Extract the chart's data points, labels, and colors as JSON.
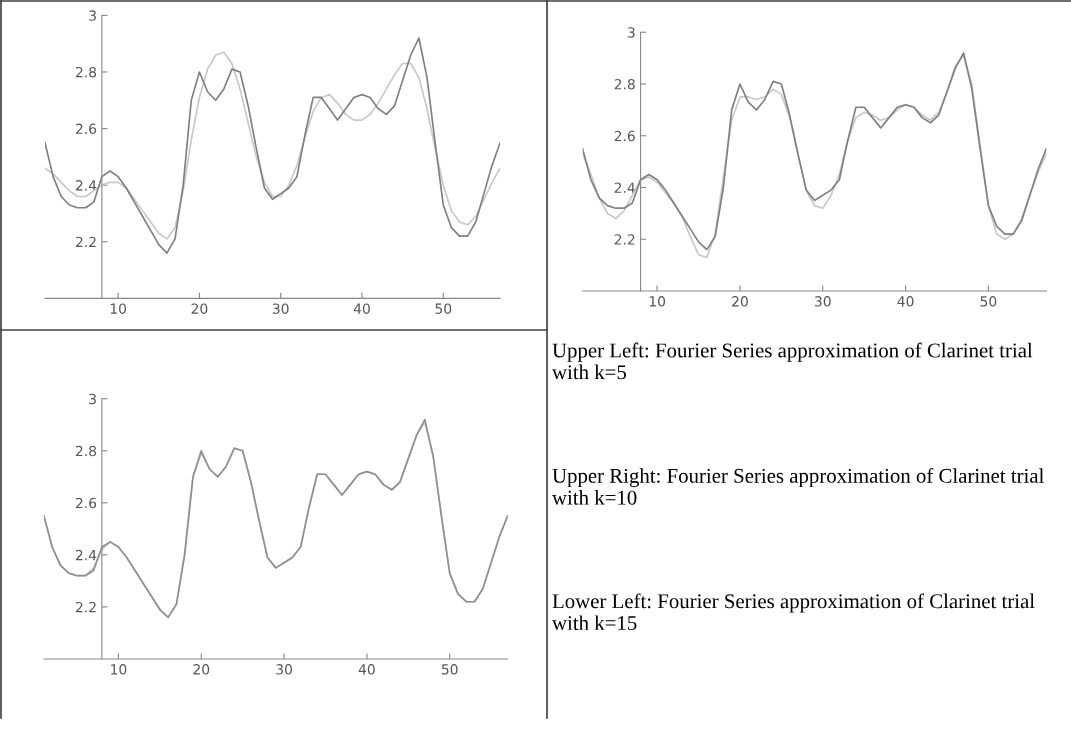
{
  "chart_data": [
    {
      "type": "line",
      "x": [
        1,
        2,
        3,
        4,
        5,
        6,
        7,
        8,
        9,
        10,
        11,
        12,
        13,
        14,
        15,
        16,
        17,
        18,
        19,
        20,
        21,
        22,
        23,
        24,
        25,
        26,
        27,
        28,
        29,
        30,
        31,
        32,
        33,
        34,
        35,
        36,
        37,
        38,
        39,
        40,
        41,
        42,
        43,
        44,
        45,
        46,
        47,
        48,
        49,
        50,
        51,
        52,
        53,
        54,
        55,
        56,
        57
      ],
      "xlim": [
        1,
        57
      ],
      "ylim": [
        2,
        3
      ],
      "xticks": [
        10,
        20,
        30,
        40,
        50
      ],
      "yticks": [
        2.2,
        2.4,
        2.6,
        2.8,
        3
      ],
      "grid": false,
      "legend": false,
      "series": [
        {
          "color": "#c8c8c8",
          "values": [
            2.46,
            2.44,
            2.41,
            2.38,
            2.36,
            2.36,
            2.38,
            2.4,
            2.41,
            2.41,
            2.39,
            2.35,
            2.31,
            2.27,
            2.23,
            2.21,
            2.25,
            2.38,
            2.56,
            2.71,
            2.81,
            2.86,
            2.87,
            2.83,
            2.74,
            2.62,
            2.5,
            2.41,
            2.36,
            2.36,
            2.4,
            2.47,
            2.57,
            2.66,
            2.71,
            2.72,
            2.69,
            2.65,
            2.63,
            2.63,
            2.65,
            2.69,
            2.74,
            2.79,
            2.83,
            2.83,
            2.78,
            2.67,
            2.53,
            2.4,
            2.31,
            2.27,
            2.26,
            2.29,
            2.35,
            2.41,
            2.46
          ]
        },
        {
          "color": "#808080",
          "values": [
            2.55,
            2.43,
            2.36,
            2.33,
            2.32,
            2.32,
            2.34,
            2.43,
            2.45,
            2.43,
            2.39,
            2.34,
            2.29,
            2.24,
            2.19,
            2.16,
            2.21,
            2.4,
            2.7,
            2.8,
            2.73,
            2.7,
            2.74,
            2.81,
            2.8,
            2.68,
            2.53,
            2.39,
            2.35,
            2.37,
            2.39,
            2.43,
            2.58,
            2.71,
            2.71,
            2.67,
            2.63,
            2.67,
            2.71,
            2.72,
            2.71,
            2.67,
            2.65,
            2.68,
            2.77,
            2.86,
            2.92,
            2.78,
            2.55,
            2.33,
            2.25,
            2.22,
            2.22,
            2.27,
            2.37,
            2.47,
            2.55
          ]
        }
      ]
    },
    {
      "type": "line",
      "x": [
        1,
        2,
        3,
        4,
        5,
        6,
        7,
        8,
        9,
        10,
        11,
        12,
        13,
        14,
        15,
        16,
        17,
        18,
        19,
        20,
        21,
        22,
        23,
        24,
        25,
        26,
        27,
        28,
        29,
        30,
        31,
        32,
        33,
        34,
        35,
        36,
        37,
        38,
        39,
        40,
        41,
        42,
        43,
        44,
        45,
        46,
        47,
        48,
        49,
        50,
        51,
        52,
        53,
        54,
        55,
        56,
        57
      ],
      "xlim": [
        1,
        57
      ],
      "ylim": [
        2,
        3
      ],
      "xticks": [
        10,
        20,
        30,
        40,
        50
      ],
      "yticks": [
        2.2,
        2.4,
        2.6,
        2.8,
        3
      ],
      "grid": false,
      "legend": false,
      "series": [
        {
          "color": "#c8c8c8",
          "values": [
            2.53,
            2.45,
            2.36,
            2.3,
            2.28,
            2.31,
            2.37,
            2.43,
            2.44,
            2.42,
            2.38,
            2.34,
            2.29,
            2.21,
            2.14,
            2.13,
            2.22,
            2.44,
            2.66,
            2.75,
            2.75,
            2.74,
            2.75,
            2.78,
            2.76,
            2.67,
            2.53,
            2.39,
            2.33,
            2.32,
            2.37,
            2.45,
            2.58,
            2.67,
            2.69,
            2.68,
            2.66,
            2.67,
            2.7,
            2.72,
            2.71,
            2.68,
            2.66,
            2.69,
            2.77,
            2.87,
            2.91,
            2.8,
            2.56,
            2.33,
            2.22,
            2.2,
            2.22,
            2.28,
            2.37,
            2.46,
            2.53
          ]
        },
        {
          "color": "#808080",
          "values": [
            2.55,
            2.43,
            2.36,
            2.33,
            2.32,
            2.32,
            2.34,
            2.43,
            2.45,
            2.43,
            2.39,
            2.34,
            2.29,
            2.24,
            2.19,
            2.16,
            2.21,
            2.4,
            2.7,
            2.8,
            2.73,
            2.7,
            2.74,
            2.81,
            2.8,
            2.68,
            2.53,
            2.39,
            2.35,
            2.37,
            2.39,
            2.43,
            2.58,
            2.71,
            2.71,
            2.67,
            2.63,
            2.67,
            2.71,
            2.72,
            2.71,
            2.67,
            2.65,
            2.68,
            2.77,
            2.86,
            2.92,
            2.78,
            2.55,
            2.33,
            2.25,
            2.22,
            2.22,
            2.27,
            2.37,
            2.47,
            2.55
          ]
        }
      ]
    },
    {
      "type": "line",
      "x": [
        1,
        2,
        3,
        4,
        5,
        6,
        7,
        8,
        9,
        10,
        11,
        12,
        13,
        14,
        15,
        16,
        17,
        18,
        19,
        20,
        21,
        22,
        23,
        24,
        25,
        26,
        27,
        28,
        29,
        30,
        31,
        32,
        33,
        34,
        35,
        36,
        37,
        38,
        39,
        40,
        41,
        42,
        43,
        44,
        45,
        46,
        47,
        48,
        49,
        50,
        51,
        52,
        53,
        54,
        55,
        56,
        57
      ],
      "xlim": [
        1,
        57
      ],
      "ylim": [
        2,
        3
      ],
      "xticks": [
        10,
        20,
        30,
        40,
        50
      ],
      "yticks": [
        2.2,
        2.4,
        2.6,
        2.8,
        3
      ],
      "grid": false,
      "legend": false,
      "series": [
        {
          "color": "#c8c8c8",
          "values": [
            2.55,
            2.43,
            2.36,
            2.33,
            2.32,
            2.32,
            2.35,
            2.42,
            2.45,
            2.43,
            2.39,
            2.34,
            2.29,
            2.24,
            2.19,
            2.16,
            2.21,
            2.41,
            2.7,
            2.79,
            2.73,
            2.7,
            2.74,
            2.81,
            2.8,
            2.68,
            2.53,
            2.39,
            2.35,
            2.37,
            2.39,
            2.43,
            2.58,
            2.71,
            2.71,
            2.67,
            2.63,
            2.67,
            2.71,
            2.72,
            2.71,
            2.67,
            2.65,
            2.68,
            2.77,
            2.86,
            2.91,
            2.78,
            2.55,
            2.33,
            2.25,
            2.22,
            2.22,
            2.27,
            2.37,
            2.47,
            2.55
          ]
        },
        {
          "color": "#909090",
          "values": [
            2.55,
            2.43,
            2.36,
            2.33,
            2.32,
            2.32,
            2.34,
            2.43,
            2.45,
            2.43,
            2.39,
            2.34,
            2.29,
            2.24,
            2.19,
            2.16,
            2.21,
            2.4,
            2.7,
            2.8,
            2.73,
            2.7,
            2.74,
            2.81,
            2.8,
            2.68,
            2.53,
            2.39,
            2.35,
            2.37,
            2.39,
            2.43,
            2.58,
            2.71,
            2.71,
            2.67,
            2.63,
            2.67,
            2.71,
            2.72,
            2.71,
            2.67,
            2.65,
            2.68,
            2.77,
            2.86,
            2.92,
            2.78,
            2.55,
            2.33,
            2.25,
            2.22,
            2.22,
            2.27,
            2.37,
            2.47,
            2.55
          ]
        }
      ]
    },
    {
      "type": "other",
      "annotations": [
        "Upper Left: Fourier Series approximation of Clarinet trial with k=5",
        "Upper Right: Fourier Series approximation of Clarinet trial with k=10",
        "Lower Left: Fourier Series approximation of Clarinet trial with k=15"
      ]
    }
  ]
}
